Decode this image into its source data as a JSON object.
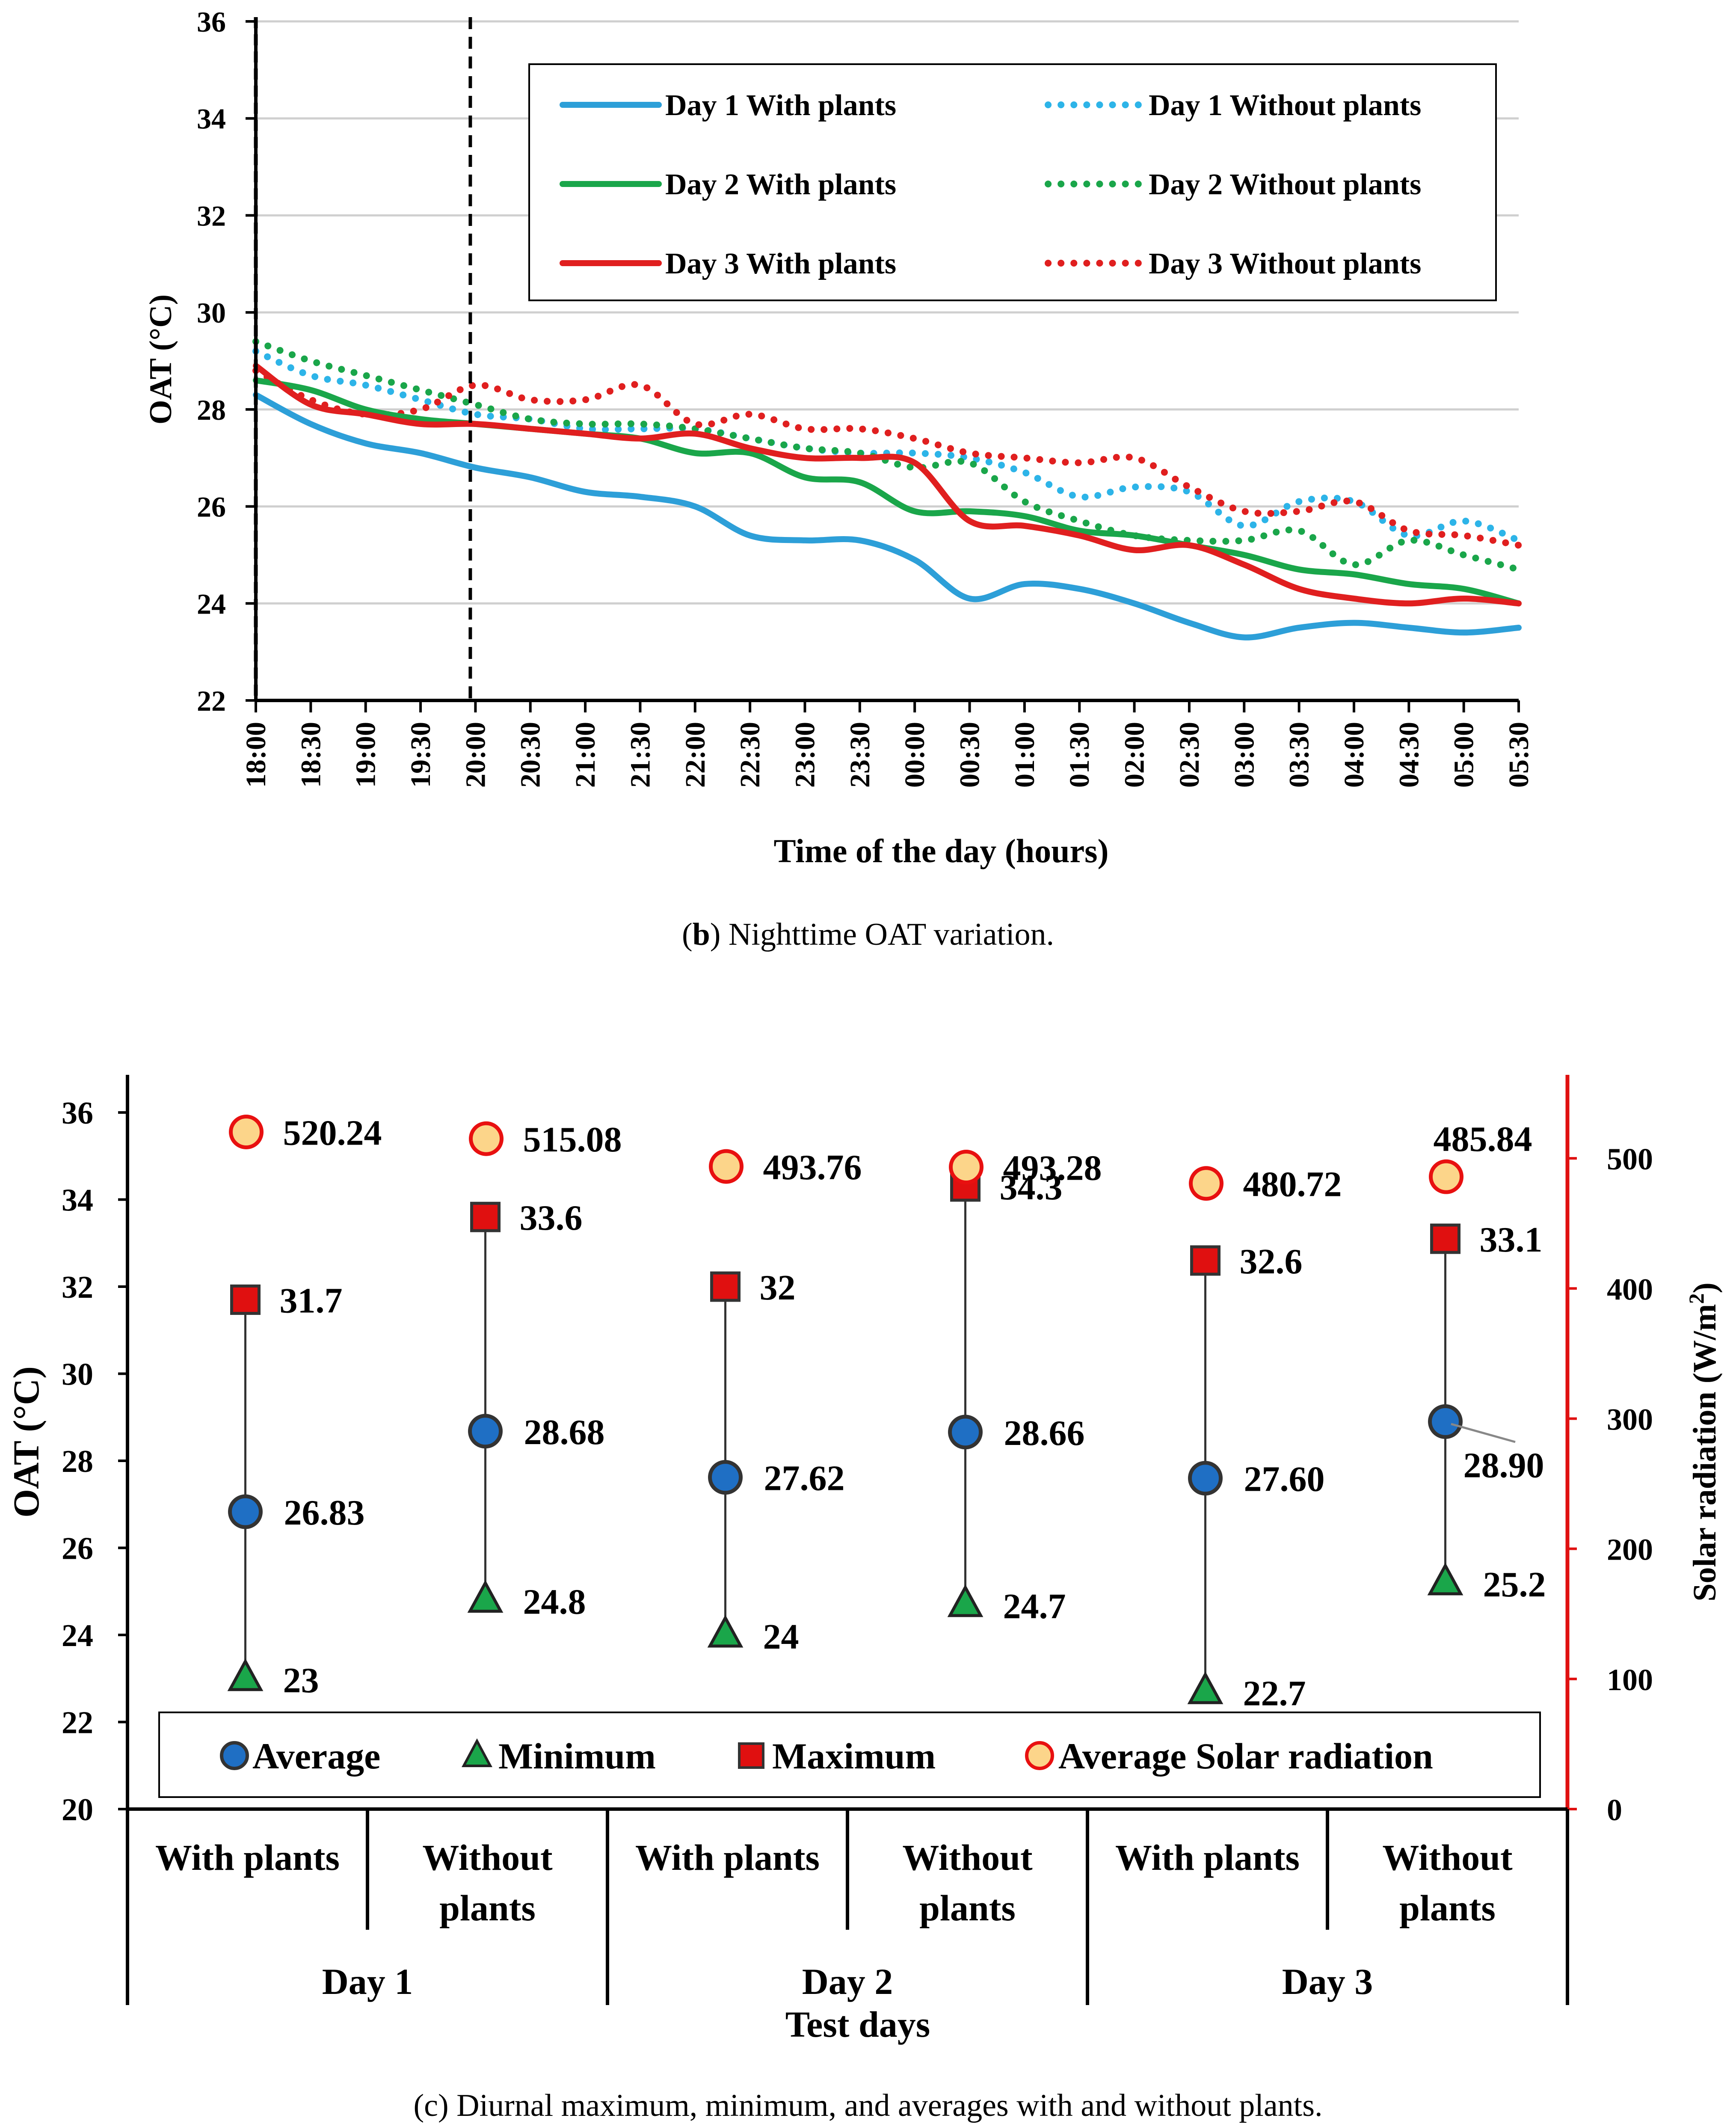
{
  "chart_data": [
    {
      "type": "line",
      "title": "",
      "caption_letter": "b",
      "caption_text": "Nighttime OAT variation.",
      "xlabel": "Time of the day (hours)",
      "ylabel": "OAT (°C)",
      "ylim": [
        22,
        36
      ],
      "yticks": [
        "22",
        "24",
        "26",
        "28",
        "30",
        "32",
        "34",
        "36"
      ],
      "x": [
        "18:00",
        "18:30",
        "19:00",
        "19:30",
        "20:00",
        "20:30",
        "21:00",
        "21:30",
        "22:00",
        "22:30",
        "23:00",
        "23:30",
        "00:00",
        "00:30",
        "01:00",
        "01:30",
        "02:00",
        "02:30",
        "03:00",
        "03:30",
        "04:00",
        "04:30",
        "05:00",
        "05:30"
      ],
      "grid": true,
      "legend_position": "top-right",
      "series": [
        {
          "name": "Day 1 With plants",
          "color": "#2d9fd8",
          "style": "solid",
          "values": [
            28.3,
            27.7,
            27.3,
            27.1,
            26.8,
            26.6,
            26.3,
            26.2,
            26.0,
            25.4,
            25.3,
            25.3,
            24.9,
            24.1,
            24.4,
            24.3,
            24.0,
            23.6,
            23.3,
            23.5,
            23.6,
            23.5,
            23.4,
            23.5
          ]
        },
        {
          "name": "Day 1 Without plants",
          "color": "#2db4e8",
          "style": "dotted",
          "values": [
            29.2,
            28.7,
            28.5,
            28.2,
            27.9,
            27.8,
            27.6,
            27.6,
            27.6,
            27.4,
            27.2,
            27.1,
            27.1,
            27.0,
            26.7,
            26.2,
            26.4,
            26.3,
            25.6,
            26.1,
            26.1,
            25.4,
            25.7,
            25.3
          ]
        },
        {
          "name": "Day 2 With plants",
          "color": "#1aa64a",
          "style": "solid",
          "values": [
            28.6,
            28.4,
            28.0,
            27.8,
            27.7,
            27.6,
            27.5,
            27.4,
            27.1,
            27.1,
            26.6,
            26.5,
            25.9,
            25.9,
            25.8,
            25.5,
            25.4,
            25.2,
            25.0,
            24.7,
            24.6,
            24.4,
            24.3,
            24.0
          ]
        },
        {
          "name": "Day 2 Without plants",
          "color": "#1aa64a",
          "style": "dotted",
          "values": [
            29.4,
            29.0,
            28.7,
            28.4,
            28.1,
            27.8,
            27.7,
            27.7,
            27.6,
            27.4,
            27.2,
            27.1,
            26.8,
            26.9,
            26.1,
            25.7,
            25.4,
            25.3,
            25.3,
            25.5,
            24.8,
            25.3,
            25.0,
            24.7
          ]
        },
        {
          "name": "Day 3 With plants",
          "color": "#e01f1f",
          "style": "solid",
          "values": [
            28.9,
            28.1,
            27.9,
            27.7,
            27.7,
            27.6,
            27.5,
            27.4,
            27.5,
            27.2,
            27.0,
            27.0,
            26.9,
            25.7,
            25.6,
            25.4,
            25.1,
            25.2,
            24.8,
            24.3,
            24.1,
            24.0,
            24.1,
            24.0
          ]
        },
        {
          "name": "Day 3 Without plants",
          "color": "#e01f1f",
          "style": "dotted",
          "values": [
            28.8,
            28.2,
            27.9,
            28.0,
            28.5,
            28.2,
            28.2,
            28.5,
            27.7,
            27.9,
            27.6,
            27.6,
            27.4,
            27.1,
            27.0,
            26.9,
            27.0,
            26.4,
            25.9,
            25.9,
            26.1,
            25.5,
            25.4,
            25.2
          ]
        }
      ],
      "annotations": [
        {
          "type": "vertical-dashed-line",
          "x": "20:00"
        }
      ]
    },
    {
      "type": "scatter",
      "title": "",
      "caption_letter": "c",
      "caption_text": "Diurnal maximum, minimum, and averages with and without plants.",
      "xlabel": "Test days",
      "ylabel": "OAT (°C)",
      "ylabel_right": "Solar radiation (W/m²)",
      "ylabel_right_main": "Solar radiation (W/m",
      "ylabel_right_sup": "2",
      "ylabel_right_close": ")",
      "ylim": [
        20,
        36
      ],
      "ylim_right": [
        0,
        550
      ],
      "yticks": [
        "20",
        "22",
        "24",
        "26",
        "28",
        "30",
        "32",
        "34",
        "36"
      ],
      "yticks_right": [
        "0",
        "100",
        "200",
        "300",
        "400",
        "500"
      ],
      "categories": [
        "With plants",
        "Without plants",
        "With plants",
        "Without plants",
        "With plants",
        "Without plants"
      ],
      "category_lines": [
        [
          "With plants"
        ],
        [
          "Without",
          "plants"
        ],
        [
          "With plants"
        ],
        [
          "Without",
          "plants"
        ],
        [
          "With plants"
        ],
        [
          "Without",
          "plants"
        ]
      ],
      "groups": [
        "Day 1",
        "Day 2",
        "Day 3"
      ],
      "legend_position": "bottom",
      "legend": [
        "Average",
        "Minimum",
        "Maximum",
        "Average Solar radiation"
      ],
      "series": [
        {
          "name": "Average",
          "marker": "circle",
          "color": "#1f6fc4",
          "values": [
            26.83,
            28.68,
            27.62,
            28.66,
            27.6,
            28.9
          ],
          "labels": [
            "26.83",
            "28.68",
            "27.62",
            "28.66",
            "27.60",
            "28.90"
          ]
        },
        {
          "name": "Minimum",
          "marker": "triangle",
          "color": "#1aa64a",
          "values": [
            23,
            24.8,
            24,
            24.7,
            22.7,
            25.2
          ],
          "labels": [
            "23",
            "24.8",
            "24",
            "24.7",
            "22.7",
            "25.2"
          ]
        },
        {
          "name": "Maximum",
          "marker": "square",
          "color": "#e01010",
          "values": [
            31.7,
            33.6,
            32,
            34.3,
            32.6,
            33.1
          ],
          "labels": [
            "31.7",
            "33.6",
            "32",
            "34.3",
            "32.6",
            "33.1"
          ]
        },
        {
          "name": "Average Solar radiation",
          "marker": "circle-open",
          "color": "#fcd58a",
          "edge": "#e81010",
          "axis": "right",
          "values": [
            520.24,
            515.08,
            493.76,
            493.28,
            480.72,
            485.84
          ],
          "labels": [
            "520.24",
            "515.08",
            "493.76",
            "493.28",
            "480.72",
            "485.84"
          ]
        }
      ]
    }
  ]
}
